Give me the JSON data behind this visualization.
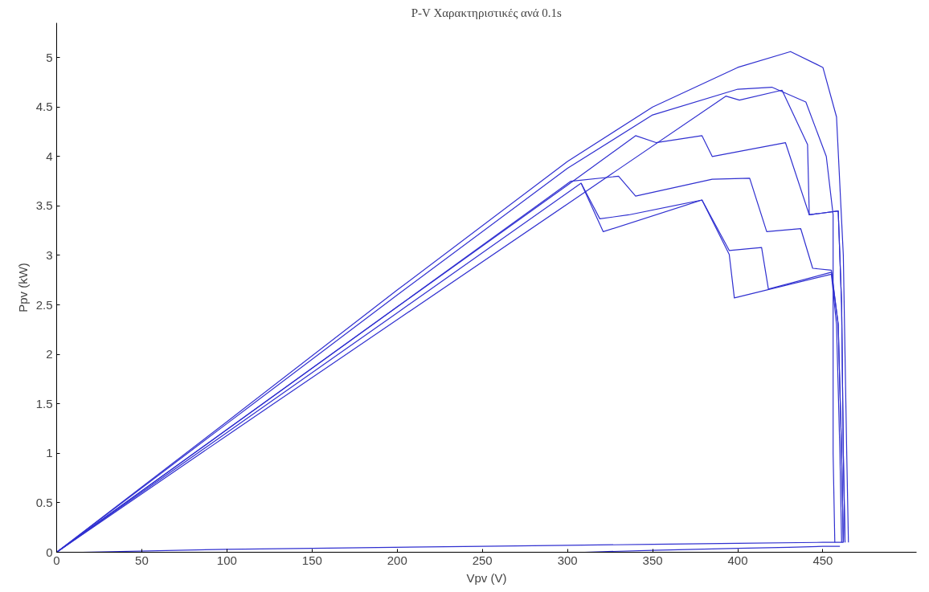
{
  "chart_data": {
    "type": "line",
    "title": "P-V Χαρακτηριστικές ανά 0.1s",
    "xlabel": "Vpv (V)",
    "ylabel": "Ppv (kW)",
    "xlim": [
      0,
      505
    ],
    "ylim": [
      0,
      5.35
    ],
    "xticks": [
      0,
      50,
      100,
      150,
      200,
      250,
      300,
      350,
      400,
      450
    ],
    "yticks": [
      0,
      0.5,
      1,
      1.5,
      2,
      2.5,
      3,
      3.5,
      4,
      4.5,
      5
    ],
    "grid": false,
    "line_style": "solid",
    "marker": "none",
    "series": [
      {
        "color": "#3030d0",
        "x": [
          0,
          100,
          200,
          300,
          350,
          400,
          431,
          450,
          458,
          462,
          464,
          465
        ],
        "values": [
          0,
          1.32,
          2.65,
          3.95,
          4.5,
          4.9,
          5.06,
          4.9,
          4.4,
          3.0,
          1.0,
          0.1
        ]
      },
      {
        "color": "#3030d0",
        "x": [
          0,
          100,
          200,
          300,
          350,
          400,
          420,
          440,
          452,
          456,
          456,
          457
        ],
        "values": [
          0,
          1.3,
          2.6,
          3.88,
          4.42,
          4.68,
          4.7,
          4.55,
          4.0,
          3.41,
          1.0,
          0.1
        ]
      },
      {
        "color": "#3030d0",
        "x": [
          0,
          100,
          200,
          300,
          393,
          401,
          426,
          441,
          442,
          459,
          461,
          462,
          463
        ],
        "values": [
          0,
          1.18,
          2.35,
          3.52,
          4.61,
          4.57,
          4.67,
          4.12,
          3.41,
          3.45,
          2.5,
          1.0,
          0.1
        ]
      },
      {
        "color": "#3030d0",
        "x": [
          0,
          100,
          200,
          300,
          340,
          352,
          379,
          385,
          428,
          442,
          459,
          461,
          462,
          463
        ],
        "values": [
          0,
          1.24,
          2.48,
          3.71,
          4.21,
          4.14,
          4.21,
          4.0,
          4.14,
          3.41,
          3.45,
          2.5,
          1.0,
          0.1
        ]
      },
      {
        "color": "#3030d0",
        "x": [
          0,
          100,
          200,
          302,
          330,
          340,
          385,
          407,
          417,
          437,
          444,
          455,
          459,
          461,
          462
        ],
        "values": [
          0,
          1.24,
          2.48,
          3.75,
          3.8,
          3.6,
          3.77,
          3.78,
          3.24,
          3.27,
          2.87,
          2.85,
          2.3,
          1.0,
          0.1
        ]
      },
      {
        "color": "#3030d0",
        "x": [
          0,
          100,
          200,
          308,
          321,
          379,
          395,
          398,
          455,
          458,
          460,
          461
        ],
        "values": [
          0,
          1.21,
          2.42,
          3.73,
          3.24,
          3.56,
          3.01,
          2.57,
          2.81,
          2.3,
          1.0,
          0.1
        ]
      },
      {
        "color": "#3030d0",
        "x": [
          308,
          319,
          336,
          379,
          395,
          414,
          418,
          455,
          459,
          461,
          462
        ],
        "values": [
          3.73,
          3.37,
          3.41,
          3.56,
          3.05,
          3.08,
          2.66,
          2.83,
          2.3,
          1.0,
          0.1
        ]
      },
      {
        "color": "#3030d0",
        "x": [
          15,
          100,
          150,
          250,
          300,
          350,
          400,
          450,
          462
        ],
        "values": [
          0,
          0.03,
          0.04,
          0.06,
          0.07,
          0.08,
          0.09,
          0.1,
          0.1
        ]
      },
      {
        "color": "#3030d0",
        "x": [
          310,
          350,
          400,
          430,
          450,
          460
        ],
        "values": [
          0,
          0.02,
          0.04,
          0.05,
          0.06,
          0.06
        ]
      }
    ]
  }
}
